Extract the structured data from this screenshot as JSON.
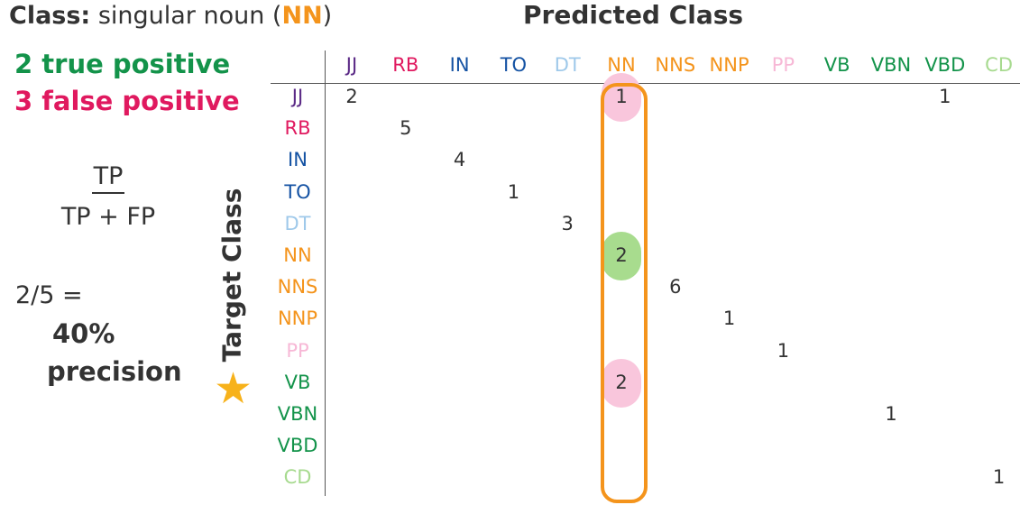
{
  "header": {
    "class_label": "Class:",
    "class_desc": "singular noun (",
    "class_code": "NN",
    "class_close": ")",
    "predicted_title": "Predicted Class",
    "target_title": "Target Class"
  },
  "summary": {
    "true_positive": "2 true positive",
    "false_positive": "3 false positive",
    "formula_numerator": "TP",
    "formula_denominator": "TP + FP",
    "ratio": "2/5 =",
    "percent": "40%",
    "precision_word": "precision"
  },
  "matrix": {
    "labels": [
      "JJ",
      "RB",
      "IN",
      "TO",
      "DT",
      "NN",
      "NNS",
      "NNP",
      "PP",
      "VB",
      "VBN",
      "VBD",
      "CD"
    ],
    "label_colors": [
      "#5b2a86",
      "#e0195f",
      "#1452a3",
      "#1452a3",
      "#9fc9ea",
      "#f4941c",
      "#f4941c",
      "#f4941c",
      "#f7b8d6",
      "#13934a",
      "#13934a",
      "#13934a",
      "#a7da8f"
    ],
    "cells": [
      {
        "row": 0,
        "col": 0,
        "value": "2"
      },
      {
        "row": 0,
        "col": 5,
        "value": "1",
        "highlight": "false-positive"
      },
      {
        "row": 0,
        "col": 11,
        "value": "1"
      },
      {
        "row": 1,
        "col": 1,
        "value": "5"
      },
      {
        "row": 2,
        "col": 2,
        "value": "4"
      },
      {
        "row": 3,
        "col": 3,
        "value": "1"
      },
      {
        "row": 4,
        "col": 4,
        "value": "3"
      },
      {
        "row": 5,
        "col": 5,
        "value": "2",
        "highlight": "true-positive"
      },
      {
        "row": 6,
        "col": 6,
        "value": "6"
      },
      {
        "row": 7,
        "col": 7,
        "value": "1"
      },
      {
        "row": 8,
        "col": 8,
        "value": "1"
      },
      {
        "row": 9,
        "col": 5,
        "value": "2",
        "highlight": "false-positive"
      },
      {
        "row": 10,
        "col": 10,
        "value": "1"
      },
      {
        "row": 12,
        "col": 12,
        "value": "1"
      }
    ],
    "highlight_colors": {
      "true-positive": "#a8dc8e",
      "false-positive": "#f9c6dc"
    },
    "highlight_column": "NN",
    "highlight_column_color": "#f4941c"
  },
  "icons": {
    "star": "star-icon",
    "star_color": "#f7b21b"
  }
}
